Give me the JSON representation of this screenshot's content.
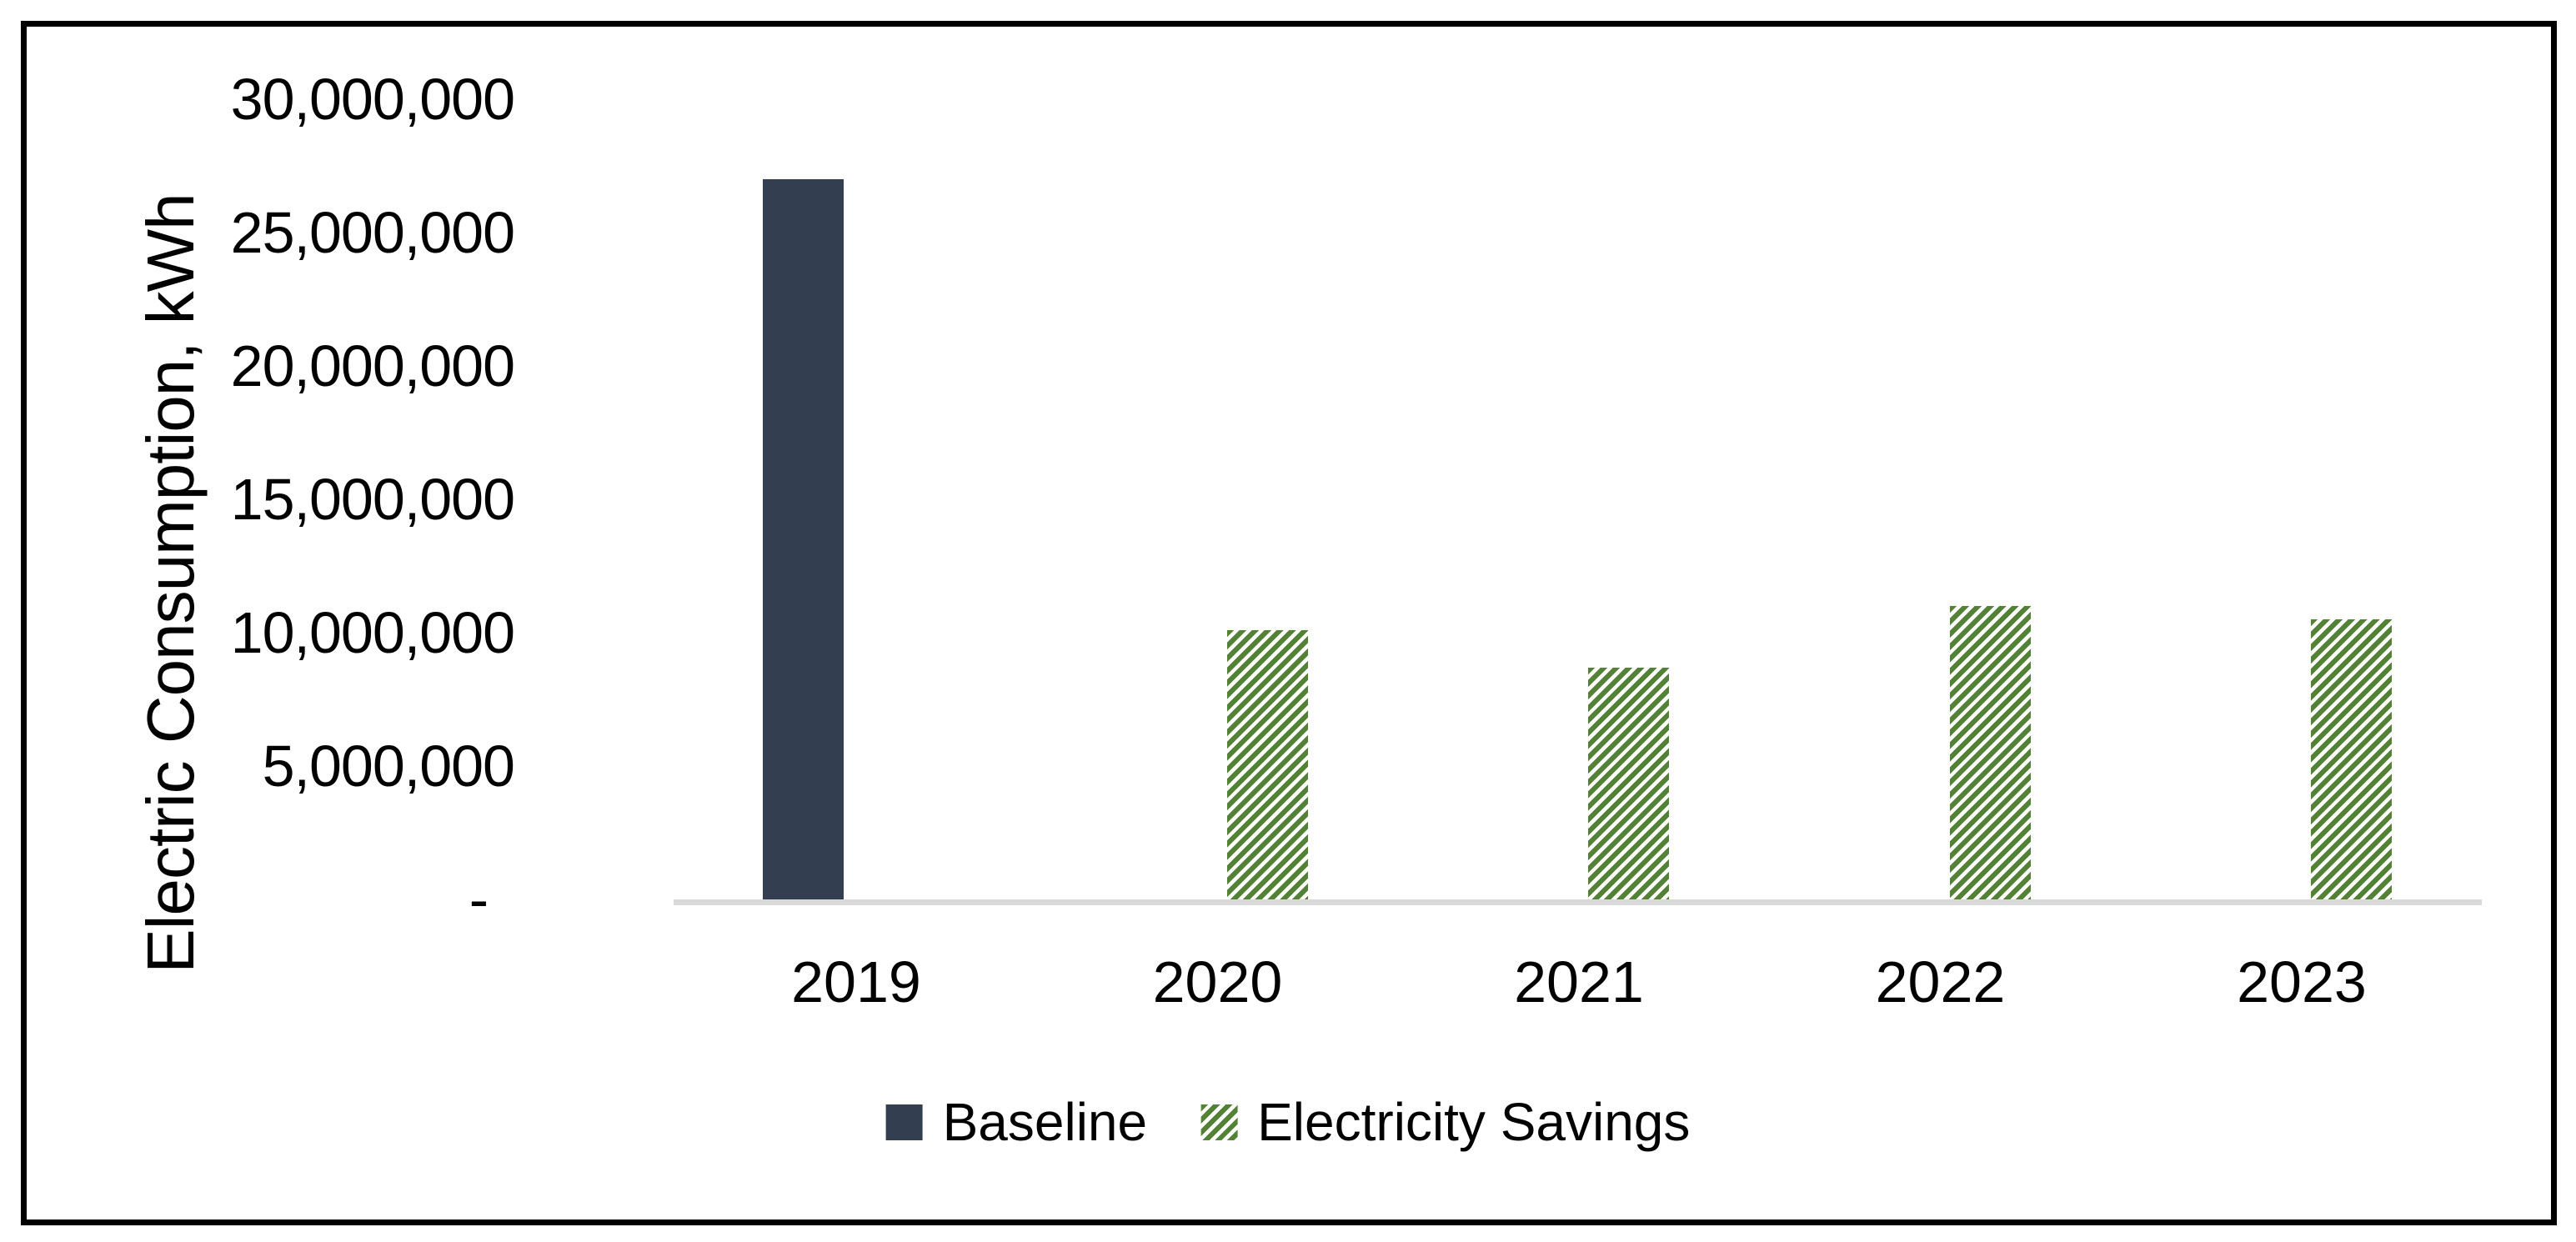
{
  "chart_data": {
    "type": "bar",
    "title": "",
    "xlabel": "",
    "ylabel": "Electric Consumption, kWh",
    "categories": [
      "2019",
      "2020",
      "2021",
      "2022",
      "2023"
    ],
    "series": [
      {
        "name": "Baseline",
        "color": "#333F50",
        "pattern": "solid",
        "values": [
          27000000,
          null,
          null,
          null,
          null
        ]
      },
      {
        "name": "Electricity Savings",
        "color": "#538135",
        "pattern": "green-diagonal-hatch",
        "values": [
          null,
          10100000,
          8700000,
          11000000,
          10500000
        ]
      }
    ],
    "ylim": [
      0,
      30000000
    ],
    "y_tick_interval": 5000000,
    "y_tick_labels": [
      "30,000,000",
      "25,000,000",
      "20,000,000",
      "15,000,000",
      "10,000,000",
      "5,000,000",
      "-"
    ],
    "grid": false,
    "legend_position": "bottom-center",
    "axis_line_color": "#D9D9D9",
    "frame_border_color": "#000000",
    "background_color": "#FFFFFF"
  }
}
